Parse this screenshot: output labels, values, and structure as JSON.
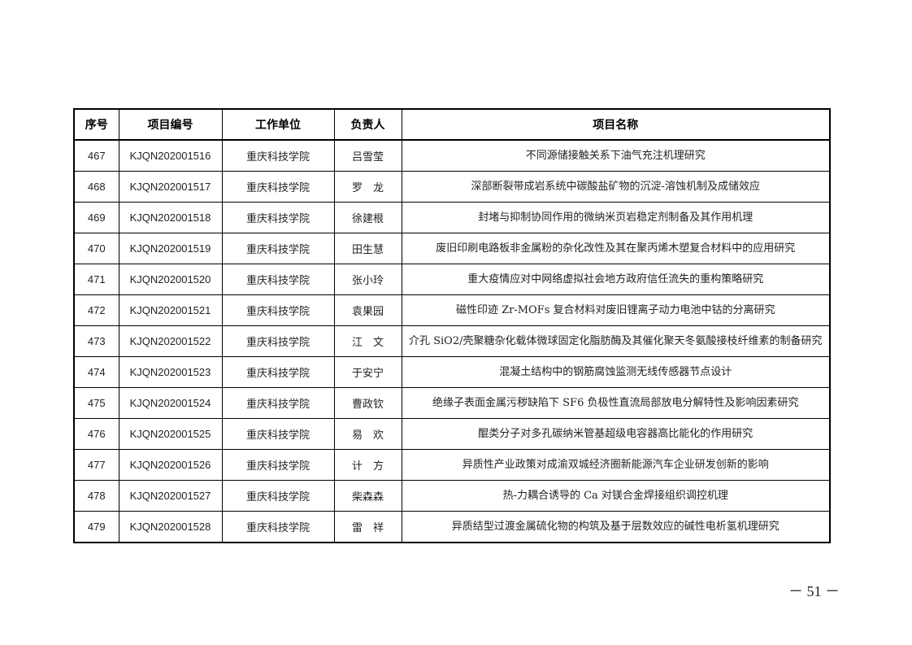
{
  "headers": [
    "序号",
    "项目编号",
    "工作单位",
    "负责人",
    "项目名称"
  ],
  "rows": [
    [
      "467",
      "KJQN202001516",
      "重庆科技学院",
      "吕雪莹",
      "不同源储接触关系下油气充注机理研究"
    ],
    [
      "468",
      "KJQN202001517",
      "重庆科技学院",
      "罗　龙",
      "深部断裂带成岩系统中碳酸盐矿物的沉淀-溶蚀机制及成储效应"
    ],
    [
      "469",
      "KJQN202001518",
      "重庆科技学院",
      "徐建根",
      "封堵与抑制协同作用的微纳米页岩稳定剂制备及其作用机理"
    ],
    [
      "470",
      "KJQN202001519",
      "重庆科技学院",
      "田生慧",
      "废旧印刷电路板非金属粉的杂化改性及其在聚丙烯木塑复合材料中的应用研究"
    ],
    [
      "471",
      "KJQN202001520",
      "重庆科技学院",
      "张小玲",
      "重大疫情应对中网络虚拟社会地方政府信任流失的重构策略研究"
    ],
    [
      "472",
      "KJQN202001521",
      "重庆科技学院",
      "袁果园",
      "磁性印迹 Zr-MOFs 复合材料对废旧锂离子动力电池中钴的分离研究"
    ],
    [
      "473",
      "KJQN202001522",
      "重庆科技学院",
      "江　文",
      "介孔 SiO2/壳聚糖杂化载体微球固定化脂肪酶及其催化聚天冬氨酸接枝纤维素的制备研究"
    ],
    [
      "474",
      "KJQN202001523",
      "重庆科技学院",
      "于安宁",
      "混凝土结构中的钢筋腐蚀监测无线传感器节点设计"
    ],
    [
      "475",
      "KJQN202001524",
      "重庆科技学院",
      "曹政钦",
      "绝缘子表面金属污秽缺陷下 SF6 负极性直流局部放电分解特性及影响因素研究"
    ],
    [
      "476",
      "KJQN202001525",
      "重庆科技学院",
      "易　欢",
      "醌类分子对多孔碳纳米管基超级电容器高比能化的作用研究"
    ],
    [
      "477",
      "KJQN202001526",
      "重庆科技学院",
      "计　方",
      "异质性产业政策对成渝双城经济圈新能源汽车企业研发创新的影响"
    ],
    [
      "478",
      "KJQN202001527",
      "重庆科技学院",
      "柴森森",
      "热-力耦合诱导的 Ca 对镁合金焊接组织调控机理"
    ],
    [
      "479",
      "KJQN202001528",
      "重庆科技学院",
      "雷　祥",
      "异质结型过渡金属硫化物的构筑及基于层数效应的碱性电析氢机理研究"
    ]
  ],
  "page_number": "－ 51 －"
}
